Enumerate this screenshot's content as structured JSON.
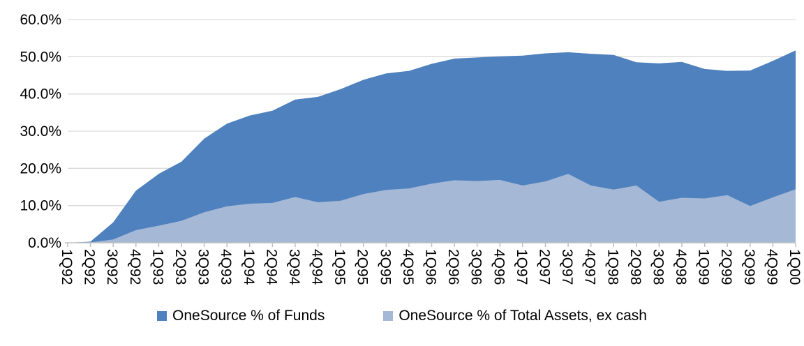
{
  "chart_data": {
    "type": "area",
    "title": "",
    "xlabel": "",
    "ylabel": "",
    "categories": [
      "1Q92",
      "2Q92",
      "3Q92",
      "4Q92",
      "1Q93",
      "2Q93",
      "3Q93",
      "4Q93",
      "1Q94",
      "2Q94",
      "3Q94",
      "4Q94",
      "1Q95",
      "2Q95",
      "3Q95",
      "4Q95",
      "1Q96",
      "2Q96",
      "3Q96",
      "4Q96",
      "1Q97",
      "2Q97",
      "3Q97",
      "4Q97",
      "1Q98",
      "2Q98",
      "3Q98",
      "4Q98",
      "1Q99",
      "2Q99",
      "3Q99",
      "4Q99",
      "1Q00"
    ],
    "series": [
      {
        "name": "OneSource % of Funds",
        "color": "#4E81BD",
        "values": [
          0.0,
          0.3,
          5.5,
          14.0,
          18.5,
          21.8,
          28.0,
          32.0,
          34.2,
          35.5,
          38.5,
          39.2,
          41.3,
          43.8,
          45.5,
          46.2,
          48.1,
          49.5,
          49.8,
          50.1,
          50.3,
          50.9,
          51.2,
          50.8,
          50.5,
          48.5,
          48.2,
          48.6,
          46.7,
          46.2,
          46.3,
          48.9,
          51.7
        ]
      },
      {
        "name": "OneSource % of Total Assets, ex cash",
        "color": "#A5B8D6",
        "values": [
          0.0,
          0.1,
          0.9,
          3.4,
          4.6,
          5.9,
          8.2,
          9.8,
          10.5,
          10.7,
          12.3,
          10.9,
          11.3,
          13.1,
          14.2,
          14.6,
          15.9,
          16.8,
          16.6,
          16.9,
          15.4,
          16.5,
          18.5,
          15.4,
          14.3,
          15.4,
          11.0,
          12.1,
          11.9,
          12.8,
          9.9,
          12.2,
          14.4
        ]
      }
    ],
    "ylim": [
      0,
      60
    ],
    "y_ticks": [
      "0.0%",
      "10.0%",
      "20.0%",
      "30.0%",
      "40.0%",
      "50.0%",
      "60.0%"
    ],
    "grid": "horizontal",
    "legend_position": "bottom",
    "series_overlap": true
  },
  "colors": {
    "gridline": "#D9D9D9",
    "axis_line": "#BFBFBF",
    "text": "#000000",
    "background": "#FFFFFF"
  }
}
